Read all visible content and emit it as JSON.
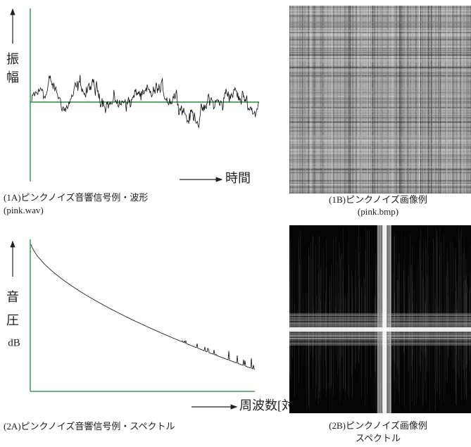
{
  "panels": [
    {
      "y_label": [
        "振",
        "幅"
      ],
      "x_label": "時間",
      "caption": [
        "(1A)ピンクノイズ音響信号例・波形",
        "(pink.wav)"
      ]
    },
    {
      "caption": [
        "(1B)ピンクノイズ画像例",
        "(pink.bmp)"
      ]
    },
    {
      "y_label": [
        "音",
        "圧",
        "dB"
      ],
      "x_label": "周波数[対数]",
      "caption": [
        "(2A)ピンクノイズ音響信号例・スペクトル"
      ]
    },
    {
      "caption": [
        "(2B)ピンクノイズ画像例",
        "スペクトル"
      ]
    }
  ]
}
